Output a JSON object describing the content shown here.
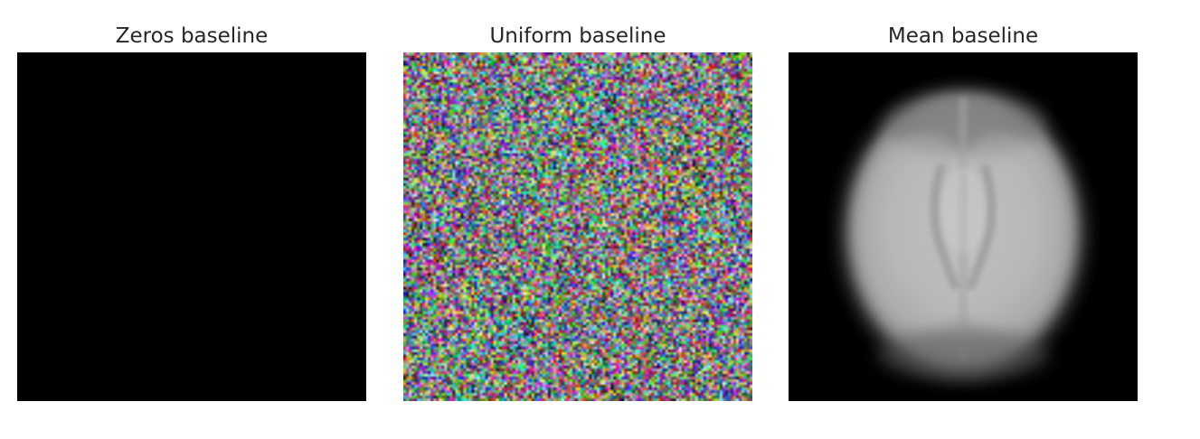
{
  "panels": [
    {
      "title": "Zeros baseline",
      "baseline": "zeros"
    },
    {
      "title": "Uniform baseline",
      "baseline": "uniform"
    },
    {
      "title": "Mean baseline",
      "baseline": "mean"
    }
  ],
  "colors": {
    "background": "#ffffff",
    "title_text": "#262626",
    "image_black": "#000000"
  }
}
